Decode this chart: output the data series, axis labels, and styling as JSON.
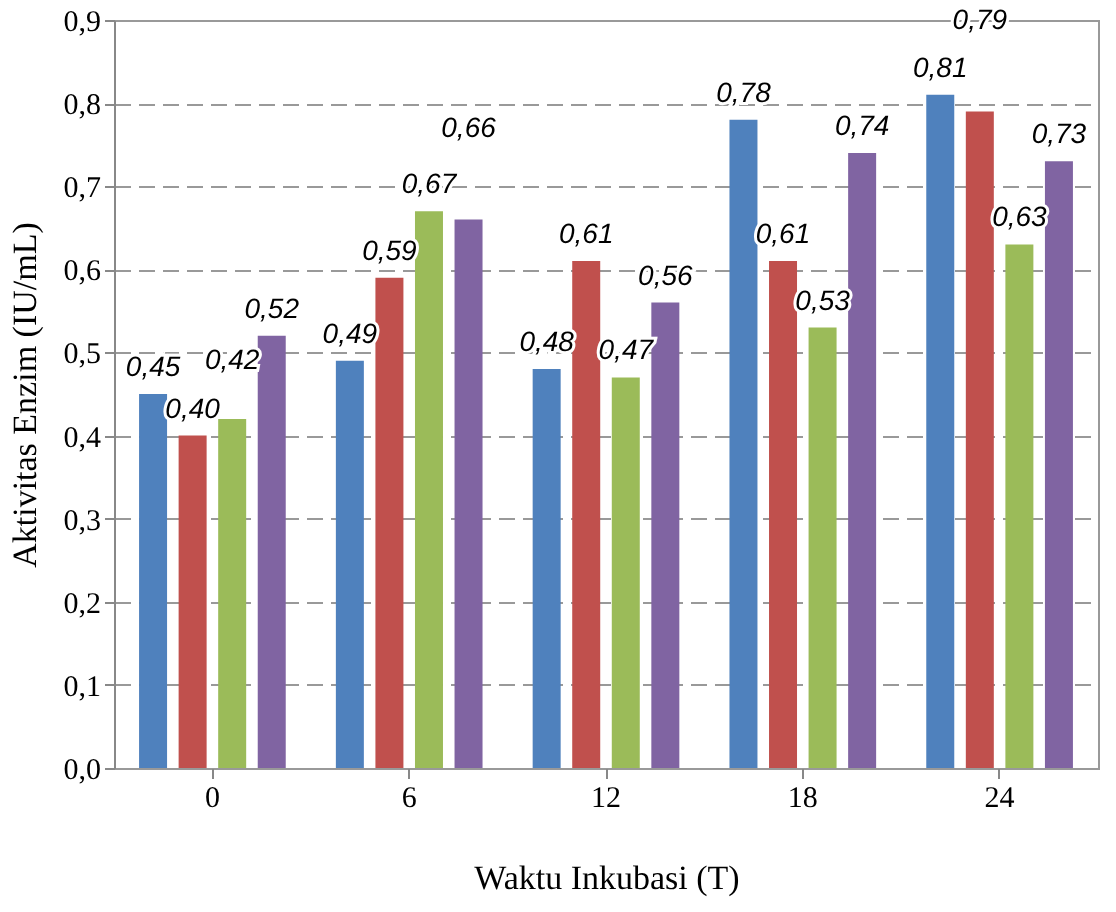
{
  "chart_data": {
    "type": "bar",
    "xlabel": "Waktu Inkubasi (T)",
    "ylabel": "Aktivitas Enzim (IU/mL)",
    "categories": [
      "0",
      "6",
      "12",
      "18",
      "24"
    ],
    "series": [
      {
        "color": "#4f81bd",
        "values": [
          0.45,
          0.49,
          0.48,
          0.78,
          0.81
        ],
        "value_labels": [
          "0,45",
          "0,49",
          "0,48",
          "0,78",
          "0,81"
        ]
      },
      {
        "color": "#c0504d",
        "values": [
          0.4,
          0.59,
          0.61,
          0.61,
          0.79
        ],
        "value_labels": [
          "0,40",
          "0,59",
          "0,61",
          "0,61",
          "0,79"
        ]
      },
      {
        "color": "#9bbb59",
        "values": [
          0.42,
          0.67,
          0.47,
          0.53,
          0.63
        ],
        "value_labels": [
          "0,42",
          "0,67",
          "0,47",
          "0,53",
          "0,63"
        ]
      },
      {
        "color": "#8064a2",
        "values": [
          0.52,
          0.66,
          0.56,
          0.74,
          0.73
        ],
        "value_labels": [
          "0,52",
          "0,66",
          "0,56",
          "0,74",
          "0,73"
        ]
      }
    ],
    "ylim": [
      0,
      0.9
    ],
    "yticks": [
      {
        "value": 0,
        "label": "0,0"
      },
      {
        "value": 0.1,
        "label": "0,1"
      },
      {
        "value": 0.2,
        "label": "0,2"
      },
      {
        "value": 0.3,
        "label": "0,3"
      },
      {
        "value": 0.4,
        "label": "0,4"
      },
      {
        "value": 0.5,
        "label": "0,5"
      },
      {
        "value": 0.6,
        "label": "0,6"
      },
      {
        "value": 0.7,
        "label": "0,7"
      },
      {
        "value": 0.8,
        "label": "0,8"
      },
      {
        "value": 0.9,
        "label": "0,9"
      }
    ],
    "grid": "y",
    "legend": false
  }
}
